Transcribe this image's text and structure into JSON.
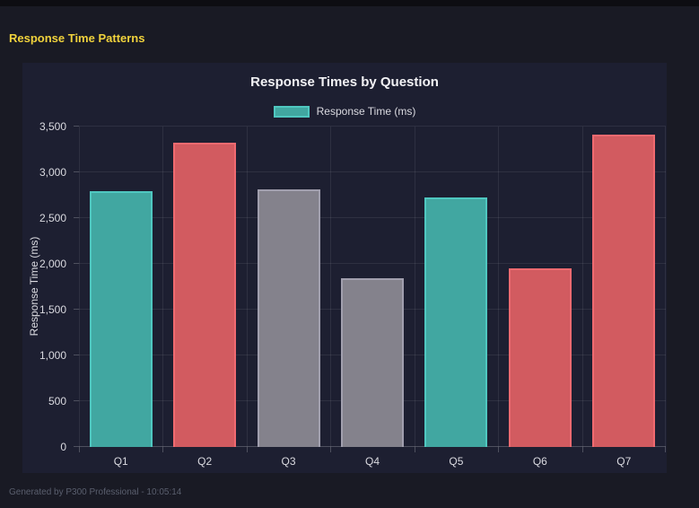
{
  "page": {
    "heading": "Response Time Patterns",
    "footer": "Generated by P300 Professional - 10:05:14"
  },
  "chart_data": {
    "type": "bar",
    "title": "Response Times by Question",
    "legend_label": "Response Time (ms)",
    "legend_position": "top",
    "categories": [
      "Q1",
      "Q2",
      "Q3",
      "Q4",
      "Q5",
      "Q6",
      "Q7"
    ],
    "values": [
      2790,
      3320,
      2810,
      1840,
      2730,
      1950,
      3410
    ],
    "bar_fill_colors": [
      "#41a7a1",
      "#d25b60",
      "#84828c",
      "#84828c",
      "#41a7a1",
      "#d25b60",
      "#d25b60"
    ],
    "bar_border_colors": [
      "#4fc7c0",
      "#f06a70",
      "#a19fae",
      "#a19fae",
      "#4fc7c0",
      "#f06a70",
      "#f06a70"
    ],
    "xlabel": "",
    "ylabel": "Response Time (ms)",
    "ylim": [
      0,
      3500
    ],
    "yticks": [
      0,
      500,
      1000,
      1500,
      2000,
      2500,
      3000,
      3500
    ],
    "ytick_labels": [
      "0",
      "500",
      "1,000",
      "1,500",
      "2,000",
      "2,500",
      "3,000",
      "3,500"
    ],
    "grid": true
  },
  "colors": {
    "page_bg": "#191a24",
    "panel_bg": "#1d1f31",
    "top_strip": "#0d0d12",
    "heading_text": "#f0d23c",
    "title_text": "#f2f2f5",
    "axis_text": "#dadae0",
    "footer_text": "#5a5f6e",
    "gridline": "rgba(255,255,255,0.08)",
    "axis_line": "rgba(255,255,255,0.22)",
    "legend_fill": "#41a7a1",
    "legend_border": "#4fc7c0"
  }
}
